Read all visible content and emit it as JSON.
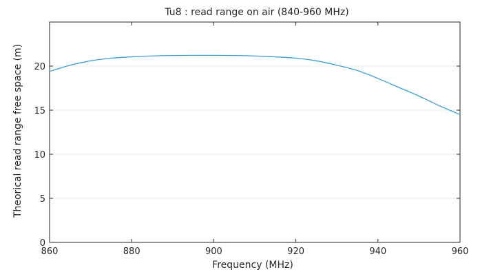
{
  "chart_data": {
    "type": "line",
    "title": "Tu8 : read range on air (840-960 MHz)",
    "xlabel": "Frequency (MHz)",
    "ylabel": "Theorical read range free space (m)",
    "xlim": [
      860,
      960
    ],
    "ylim": [
      0,
      25
    ],
    "xticks": [
      "860",
      "880",
      "900",
      "920",
      "940",
      "960"
    ],
    "yticks": [
      "0",
      "5",
      "10",
      "15",
      "20"
    ],
    "grid": "horizontal",
    "colors": {
      "line": "#3a9fd6",
      "axis": "#262626",
      "grid": "#ebebeb"
    },
    "series": [
      {
        "x": [
          860,
          865,
          870,
          875,
          880,
          885,
          890,
          895,
          900,
          905,
          910,
          915,
          920,
          925,
          930,
          935,
          940,
          945,
          950,
          955,
          960
        ],
        "values": [
          19.4,
          20.1,
          20.6,
          20.9,
          21.05,
          21.15,
          21.2,
          21.22,
          21.22,
          21.2,
          21.15,
          21.05,
          20.9,
          20.6,
          20.1,
          19.5,
          18.6,
          17.6,
          16.6,
          15.5,
          14.5
        ]
      }
    ]
  }
}
